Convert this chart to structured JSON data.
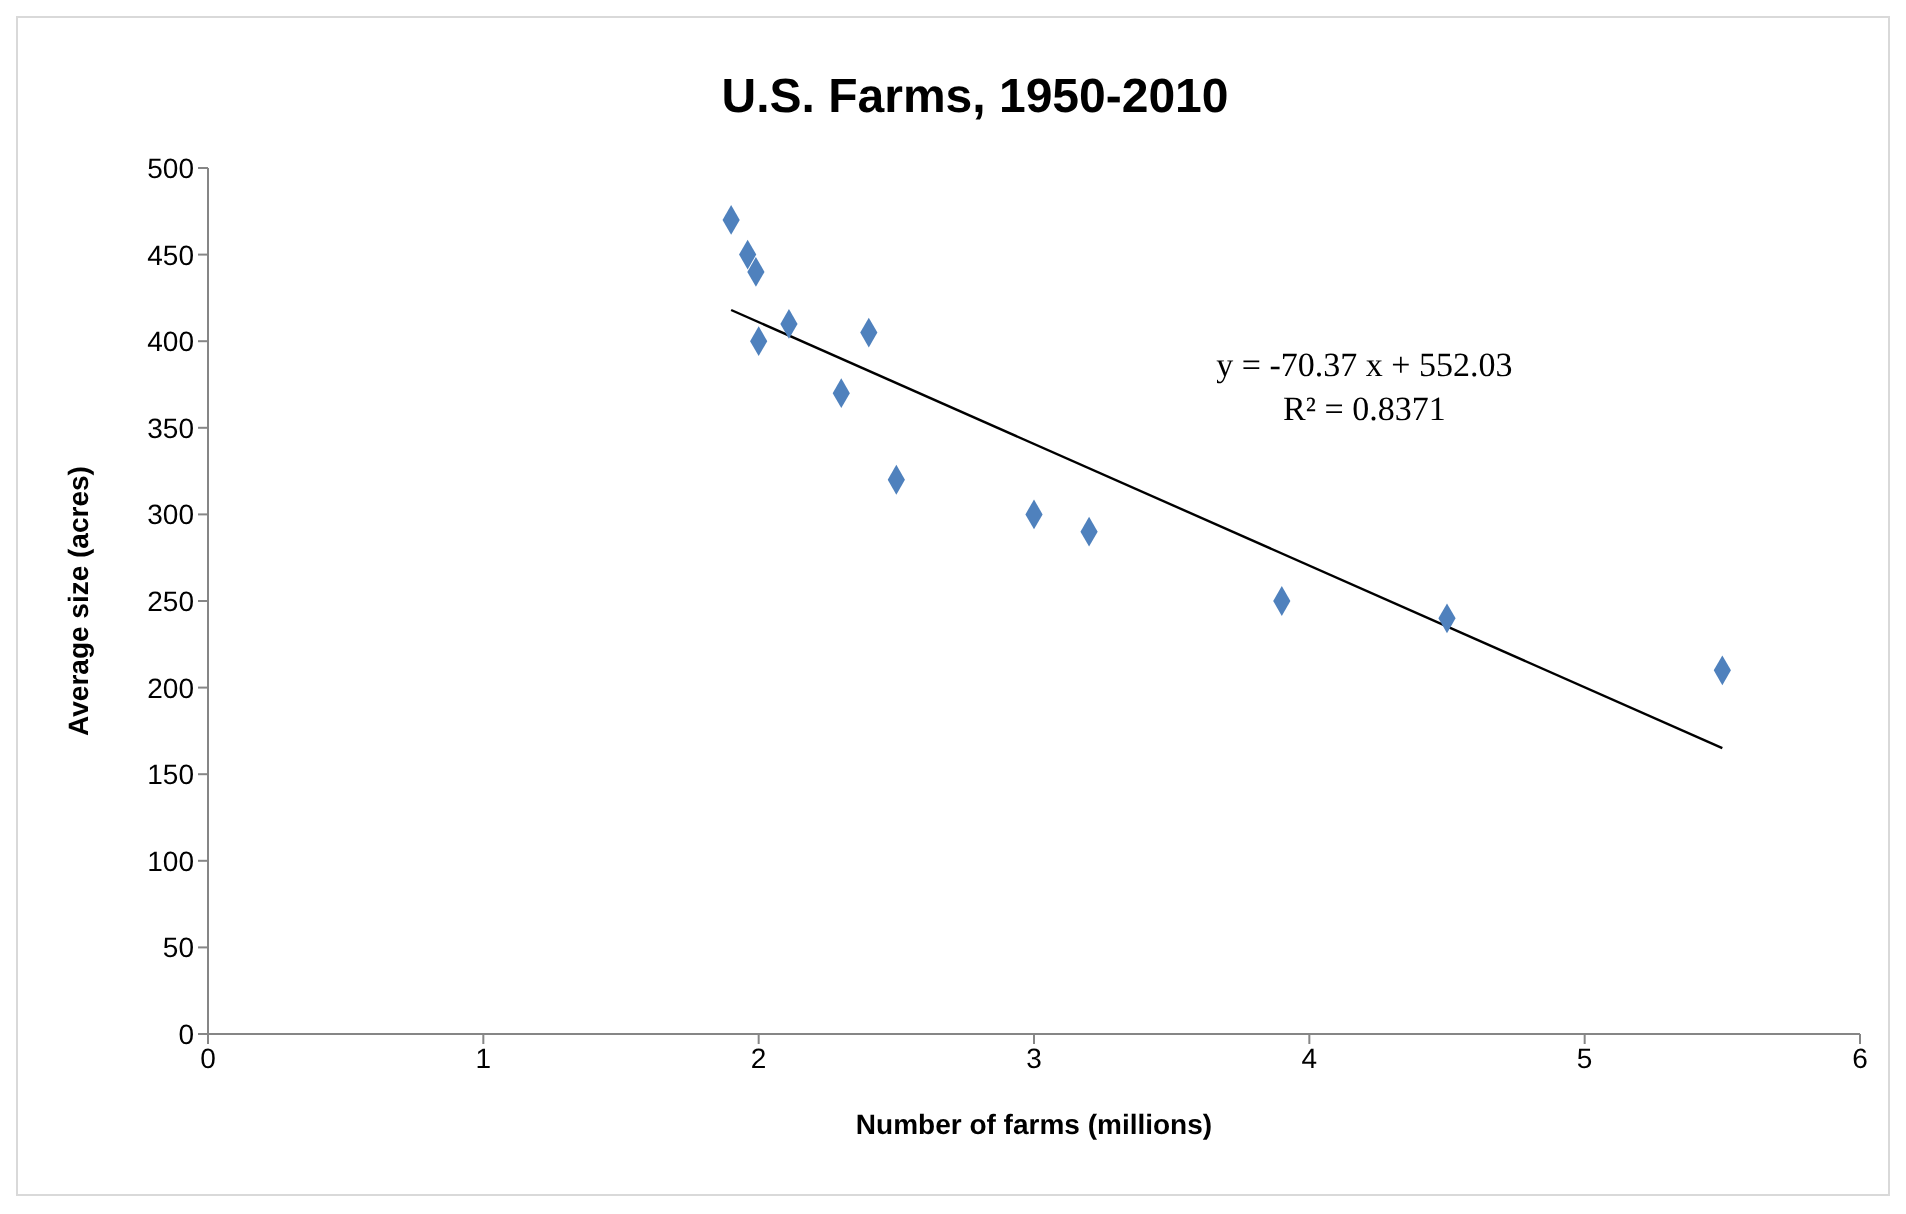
{
  "chart_data": {
    "type": "scatter",
    "title": "U.S. Farms, 1950-2010",
    "xlabel": "Number of farms (millions)",
    "ylabel": "Average size (acres)",
    "series": [
      {
        "color": "#4f81bd",
        "marker": "diamond",
        "x": [
          1.9,
          1.96,
          1.99,
          2.0,
          2.11,
          2.3,
          2.4,
          2.5,
          3.0,
          3.2,
          3.9,
          4.5,
          5.5
        ],
        "values": [
          470,
          450,
          440,
          400,
          410,
          370,
          405,
          320,
          300,
          290,
          250,
          240,
          210
        ]
      },
      {
        "type": "line",
        "color": "#000000",
        "line_style": "solid",
        "marker": "none",
        "x": [
          1.9,
          5.5
        ],
        "values": [
          418,
          165
        ]
      }
    ],
    "annotations": [
      "y = -70.37 x + 552.03",
      "R² = 0.8371"
    ],
    "xlim": [
      0,
      6
    ],
    "xticks": [
      0,
      1,
      2,
      3,
      4,
      5,
      6
    ],
    "ylim": [
      0,
      500
    ],
    "yticks": [
      0,
      50,
      100,
      150,
      200,
      250,
      300,
      350,
      400,
      450,
      500
    ],
    "grid": false
  }
}
